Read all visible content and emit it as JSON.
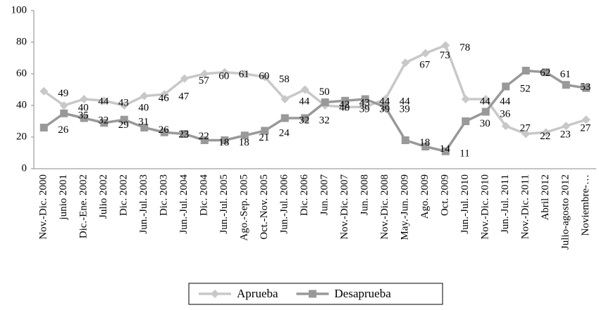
{
  "chart_data": {
    "type": "line",
    "categories": [
      "Nov.-Dic. 2000",
      "junio 2001",
      "Dic.-Ene. 2002",
      "Julio 2002",
      "Dic. 2002",
      "Jun.-Jul. 2003",
      "Dic. 2003",
      "Jun.-Jul. 2004",
      "Dic. 2004",
      "Jun.-Jul. 2005",
      "Ago.-Sep. 2005",
      "Oct.-Nov. 2005",
      "Jun.-Jul. 2006",
      "Dic. 2006",
      "Jun. 2007",
      "Nov.-Dic. 2007",
      "Jun. 2008",
      "Nov.-Dic. 2008",
      "May.-Jun. 2009",
      "Ago. 2009",
      "Oct. 2009",
      "Jun.-Jul. 2010",
      "Nov.-Dic. 2010",
      "Jun.-Jul. 2011",
      "Nov.-Dic. 2011",
      "Abril 2012",
      "Julio-agosto 2012",
      "Noviembre-…"
    ],
    "series": [
      {
        "name": "Aprueba",
        "color": "#c8c8c8",
        "marker": "diamond",
        "values": [
          49,
          40,
          44,
          43,
          40,
          46,
          47,
          57,
          60,
          61,
          60,
          58,
          44,
          50,
          40,
          39,
          39,
          44,
          67,
          73,
          78,
          44,
          44,
          27,
          22,
          23,
          27,
          31
        ]
      },
      {
        "name": "Desaprueba",
        "color": "#999999",
        "marker": "square",
        "values": [
          26,
          35,
          32,
          29,
          31,
          26,
          23,
          22,
          18,
          18,
          21,
          24,
          32,
          32,
          42,
          43,
          44,
          39,
          18,
          14,
          11,
          30,
          36,
          52,
          62,
          61,
          53,
          51
        ]
      }
    ],
    "ylim": [
      0,
      100
    ],
    "yticks": [
      0,
      20,
      40,
      60,
      80,
      100
    ],
    "grid": false,
    "legend": "bottom"
  }
}
